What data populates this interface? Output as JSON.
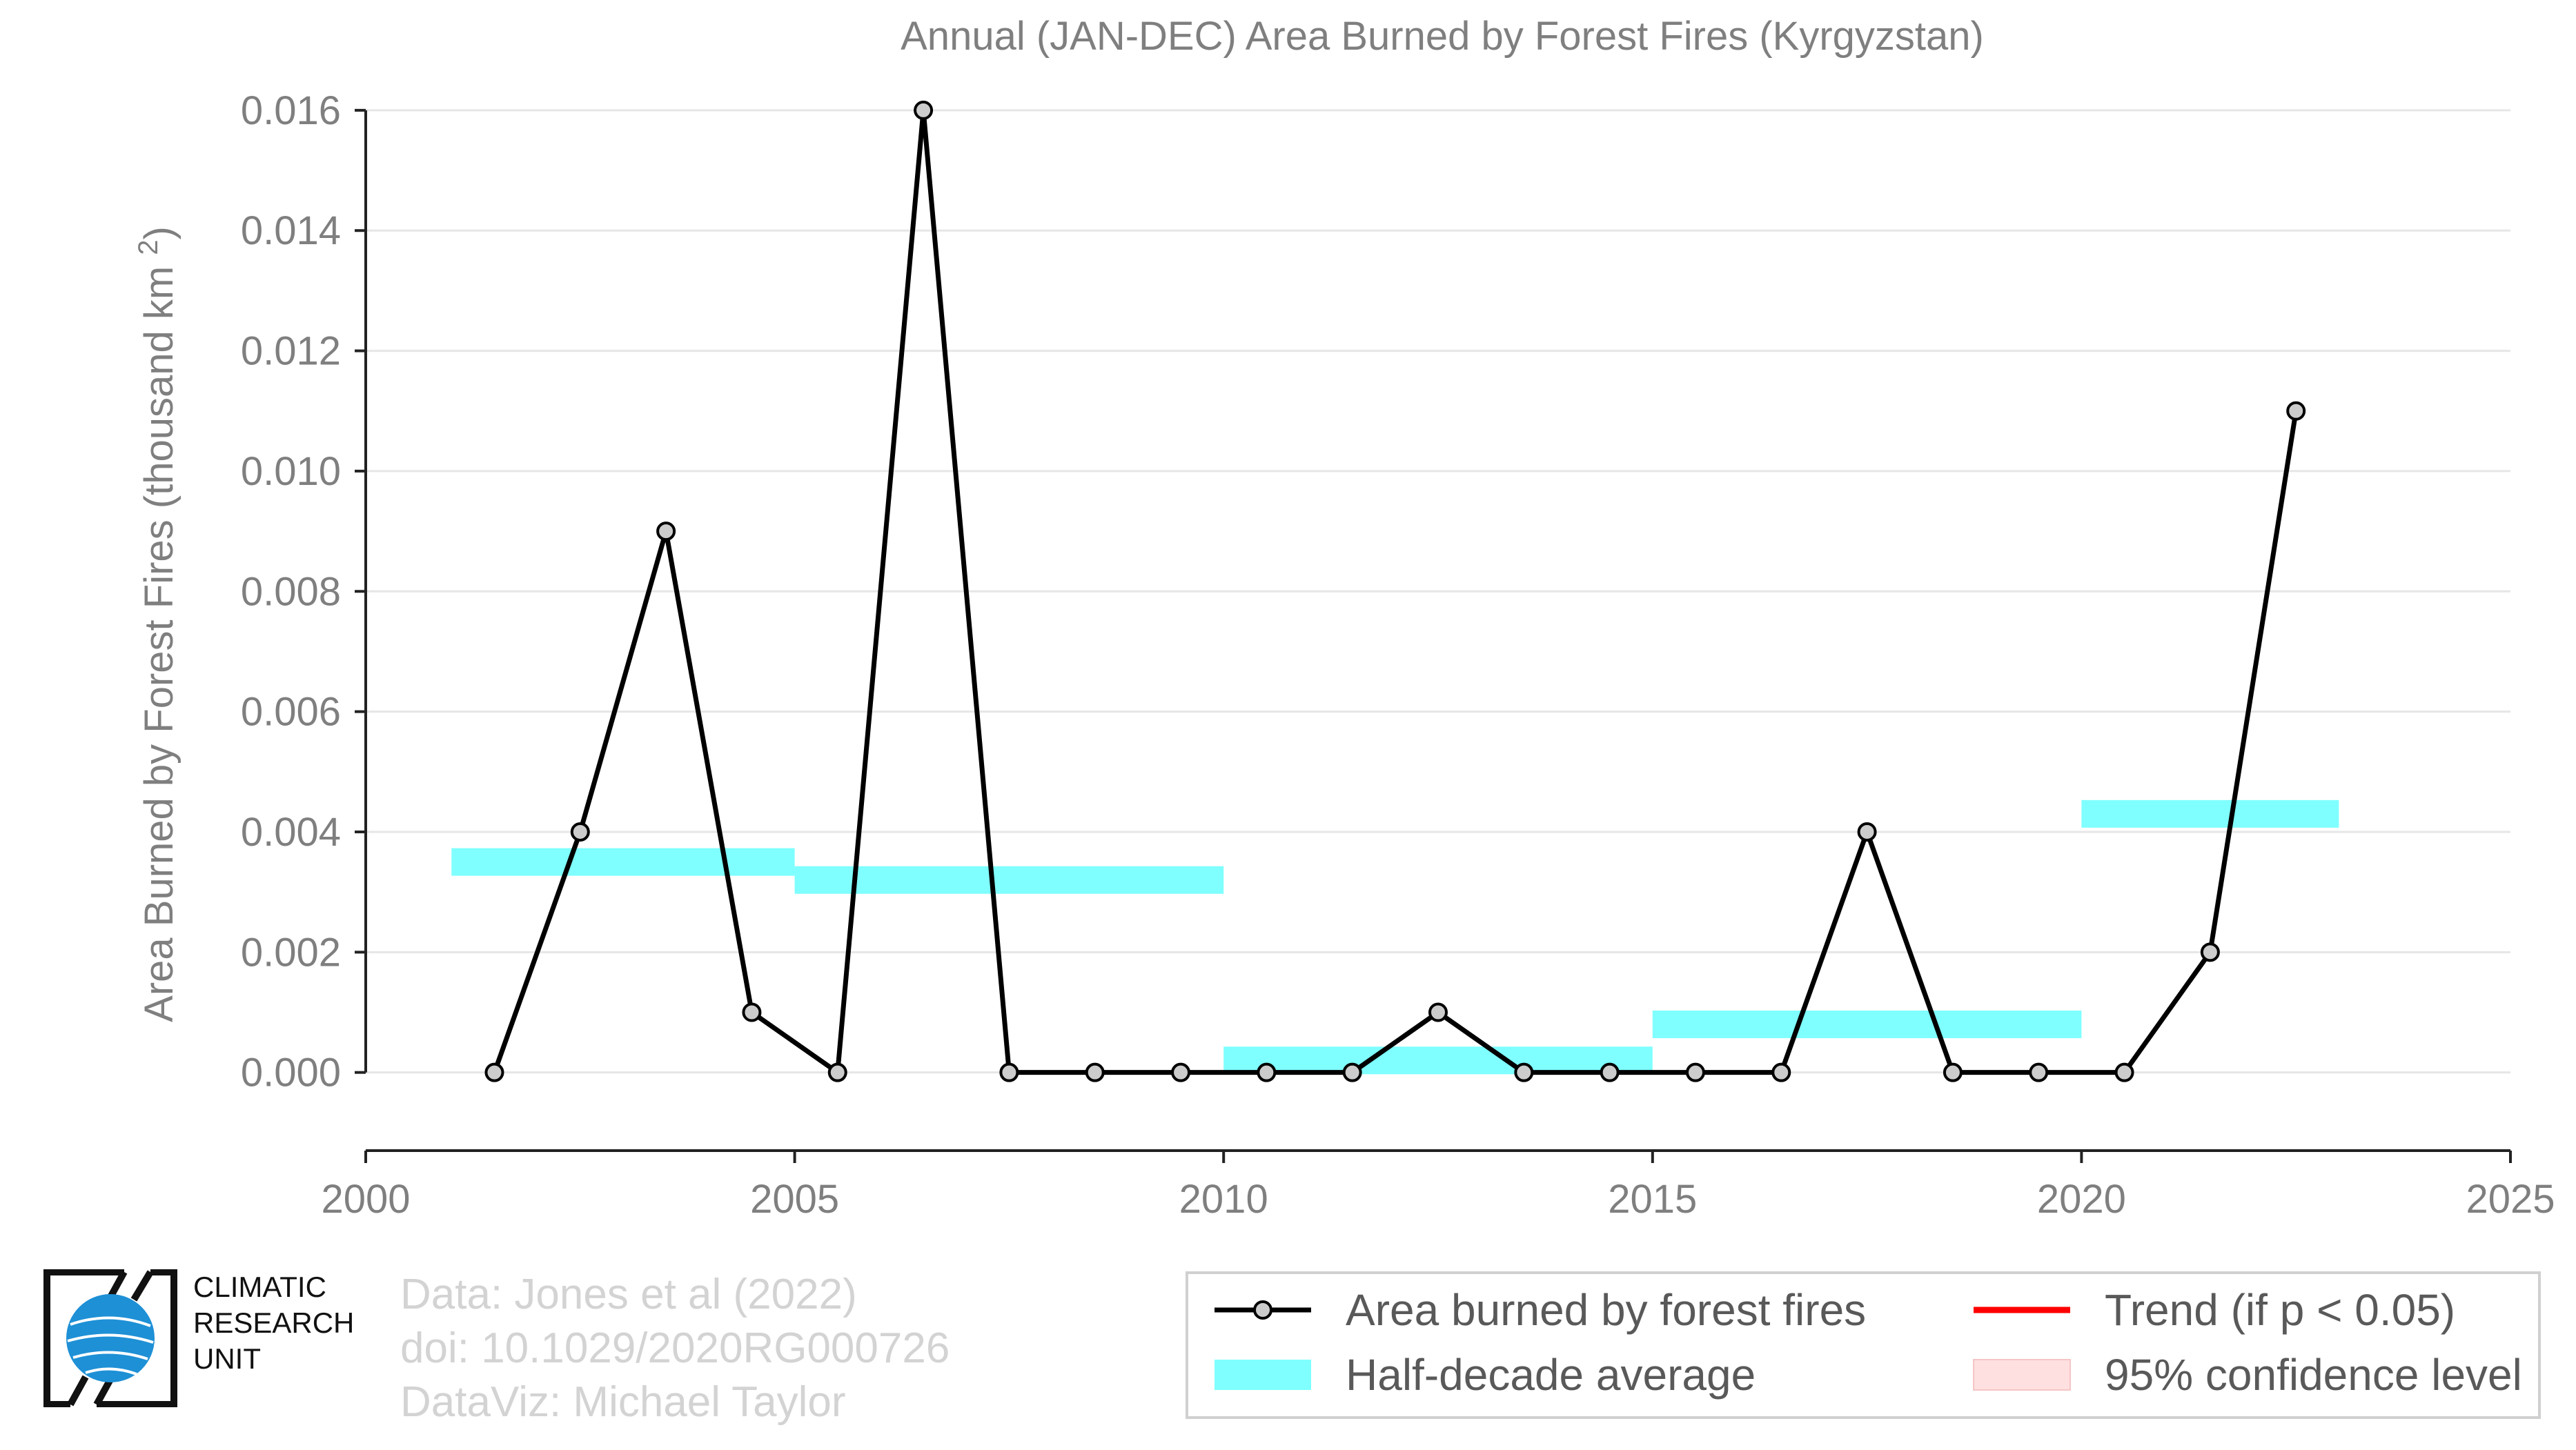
{
  "chart_data": {
    "type": "line",
    "title": "Annual (JAN-DEC) Area Burned by Forest Fires (Kyrgyzstan)",
    "ylabel": "Area Burned by Forest Fires (thousand km²)",
    "xlabel": "",
    "xlim": [
      2000,
      2025
    ],
    "ylim": [
      -0.0013,
      0.0164
    ],
    "x_ticks": [
      "2000",
      "2005",
      "2010",
      "2015",
      "2020",
      "2025"
    ],
    "y_ticks": [
      "0.000",
      "0.002",
      "0.004",
      "0.006",
      "0.008",
      "0.010",
      "0.012",
      "0.014",
      "0.016"
    ],
    "grid": true,
    "series": [
      {
        "name": "Area burned by forest fires",
        "color": "#000000",
        "marker_fill": "#cccccc",
        "x": [
          2001.5,
          2002.5,
          2003.5,
          2004.5,
          2005.5,
          2006.5,
          2007.5,
          2008.5,
          2009.5,
          2010.5,
          2011.5,
          2012.5,
          2013.5,
          2014.5,
          2015.5,
          2016.5,
          2017.5,
          2018.5,
          2019.5,
          2020.5,
          2021.5,
          2022.5
        ],
        "y": [
          0.0,
          0.004,
          0.009,
          0.001,
          0.0,
          0.016,
          0.0,
          0.0,
          0.0,
          0.0,
          0.0,
          0.001,
          0.0,
          0.0,
          0.0,
          0.0,
          0.004,
          0.0,
          0.0,
          0.0,
          0.002,
          0.011
        ]
      }
    ],
    "half_decade_average": {
      "name": "Half-decade average",
      "color": "#7fffff",
      "segments": [
        {
          "x0": 2001,
          "x1": 2005,
          "y": 0.0035
        },
        {
          "x0": 2005,
          "x1": 2010,
          "y": 0.0032
        },
        {
          "x0": 2010,
          "x1": 2015,
          "y": 0.0002
        },
        {
          "x0": 2015,
          "x1": 2020,
          "y": 0.0008
        },
        {
          "x0": 2020,
          "x1": 2023,
          "y": 0.0043
        }
      ]
    },
    "legend": {
      "placement": "bottom-right",
      "items": [
        {
          "label": "Area burned by forest fires",
          "kind": "line-marker",
          "color": "#000000"
        },
        {
          "label": "Trend (if p < 0.05)",
          "kind": "line",
          "color": "#ff0000"
        },
        {
          "label": "Half-decade average",
          "kind": "band",
          "color": "#7fffff"
        },
        {
          "label": "95% confidence level",
          "kind": "band",
          "color": "#ffe0e0"
        }
      ]
    }
  },
  "credits": {
    "line1": "Data: Jones et al (2022)",
    "line2": "doi: 10.1029/2020RG000726",
    "line3": "DataViz: Michael Taylor"
  },
  "logo": {
    "line1": "CLIMATIC",
    "line2": "RESEARCH",
    "line3": "UNIT"
  }
}
